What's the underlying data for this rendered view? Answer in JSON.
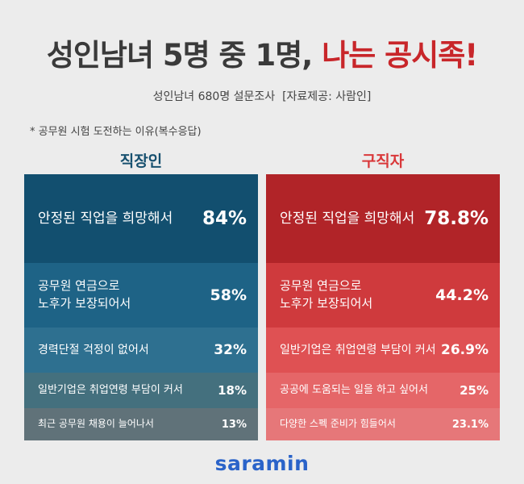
{
  "header": {
    "title_main": "성인남녀 5명 중 1명,",
    "title_highlight": "나는 공시족!",
    "subtitle": "성인남녀 680명 설문조사  [자료제공: 사람인]",
    "note": "* 공무원 시험 도전하는 이유(복수응답)"
  },
  "colors": {
    "title_highlight": "#c8262a",
    "employee_title": "#17506f",
    "jobseeker_title": "#d9383a",
    "employee_rows": [
      "#124f6f",
      "#1e6386",
      "#2e7090",
      "#44707e",
      "#607279"
    ],
    "jobseeker_rows": [
      "#b12428",
      "#cf3a3d",
      "#df5153",
      "#e56668",
      "#e67779"
    ]
  },
  "chart_data": [
    {
      "type": "table",
      "title": "직장인",
      "categories": [
        "안정된 직업을 희망해서",
        "공무원 연금으로\n노후가 보장되어서",
        "경력단절 걱정이 없어서",
        "일반기업은 취업연령 부담이 커서",
        "최근 공무원 채용이 늘어나서"
      ],
      "values": [
        84,
        58,
        32,
        18,
        13
      ],
      "labels": [
        "84%",
        "58%",
        "32%",
        "18%",
        "13%"
      ],
      "unit": "%"
    },
    {
      "type": "table",
      "title": "구직자",
      "categories": [
        "안정된 직업을 희망해서",
        "공무원 연금으로\n노후가 보장되어서",
        "일반기업은 취업연령 부담이 커서",
        "공공에 도움되는 일을 하고 싶어서",
        "다양한 스펙 준비가 힘들어서"
      ],
      "values": [
        78.8,
        44.2,
        26.9,
        25,
        23.1
      ],
      "labels": [
        "78.8%",
        "44.2%",
        "26.9%",
        "25%",
        "23.1%"
      ],
      "unit": "%"
    }
  ],
  "footer": {
    "logo": "saramin"
  }
}
